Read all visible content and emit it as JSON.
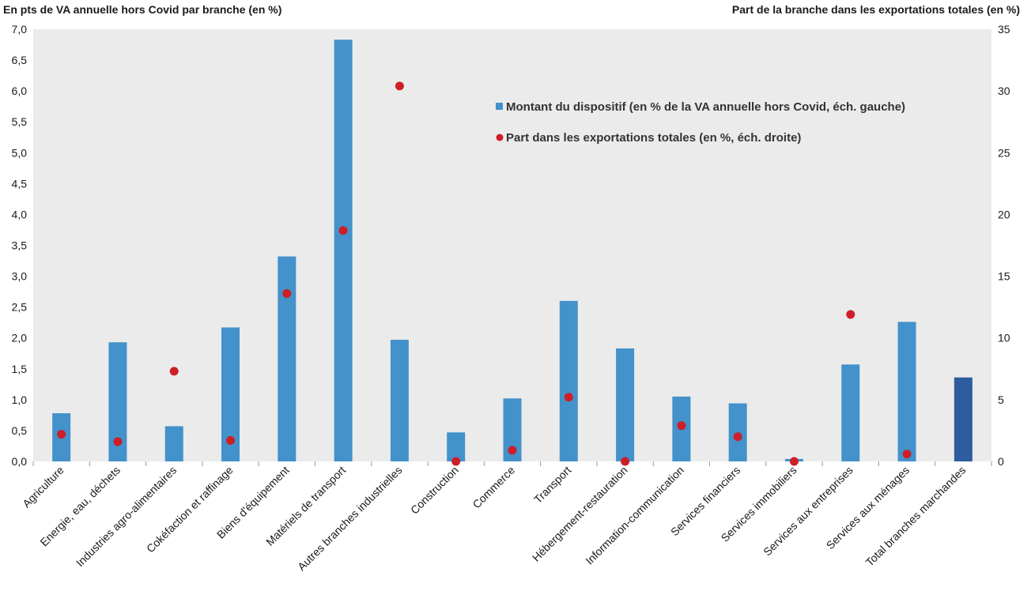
{
  "chart_data": {
    "type": "bar",
    "title": "",
    "ylabel_left": "En pts de VA annuelle hors Covid par branche (en %)",
    "ylabel_right": "Part de la branche dans les exportations totales (en %)",
    "categories": [
      "Agriculture",
      "Energie, eau, déchets",
      "Industries agro-alimentaires",
      "Cokéfaction et raffinage",
      "Biens d'équipement",
      "Matériels de transport",
      "Autres branches industrielles",
      "Construction",
      "Commerce",
      "Transport",
      "Hébergement-restauration",
      "Information-communication",
      "Services financiers",
      "Services immobiliers",
      "Services aux entreprises",
      "Services aux ménages",
      "Total branches marchandes"
    ],
    "series": [
      {
        "name": "Montant du dispositif (en % de la VA annuelle hors Covid, éch. gauche)",
        "type": "bar",
        "axis": "left",
        "color": "#4392cb",
        "highlight_color": "#2e5c9e",
        "highlight_index": 16,
        "values": [
          0.78,
          1.93,
          0.57,
          2.17,
          3.32,
          6.83,
          1.97,
          0.47,
          1.02,
          2.6,
          1.83,
          1.05,
          0.94,
          0.04,
          1.57,
          2.26,
          1.36
        ]
      },
      {
        "name": "Part dans les exportations totales (en %, éch. droite)",
        "type": "scatter",
        "axis": "right",
        "color": "#cc1f27",
        "values": [
          2.2,
          1.6,
          7.3,
          1.7,
          13.6,
          18.7,
          30.4,
          0.0,
          0.9,
          5.2,
          0.0,
          2.9,
          2.0,
          0.0,
          11.9,
          0.6,
          null
        ]
      }
    ],
    "ylim_left": [
      0,
      7
    ],
    "ylim_right": [
      0,
      35
    ],
    "yticks_left": [
      "0,0",
      "0,5",
      "1,0",
      "1,5",
      "2,0",
      "2,5",
      "3,0",
      "3,5",
      "4,0",
      "4,5",
      "5,0",
      "5,5",
      "6,0",
      "6,5",
      "7,0"
    ],
    "yticks_right": [
      "0",
      "5",
      "10",
      "15",
      "20",
      "25",
      "30",
      "35"
    ],
    "grid": false,
    "legend_position": "top-right, inside plot",
    "plot_background": "#ebebeb"
  }
}
